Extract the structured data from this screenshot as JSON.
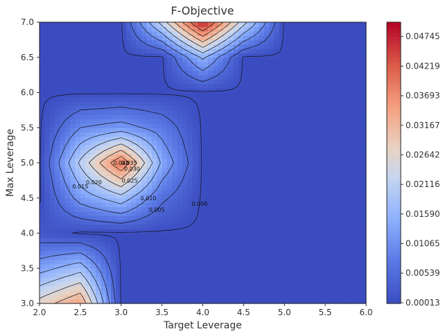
{
  "chart_data": {
    "type": "contour",
    "title": "F-Objective",
    "xlabel": "Target Leverage",
    "ylabel": "Max Leverage",
    "xlim": [
      2.0,
      6.0
    ],
    "ylim": [
      3.0,
      7.0
    ],
    "xticks": [
      "2.0",
      "2.5",
      "3.0",
      "3.5",
      "4.0",
      "4.5",
      "5.0",
      "5.5",
      "6.0"
    ],
    "yticks": [
      "3.0",
      "3.5",
      "4.0",
      "4.5",
      "5.0",
      "5.5",
      "6.0",
      "6.5",
      "7.0"
    ],
    "x": [
      2.0,
      2.5,
      3.0,
      3.5,
      4.0,
      4.5,
      5.0,
      5.5,
      6.0
    ],
    "y": [
      3.0,
      3.5,
      4.0,
      4.5,
      5.0,
      5.5,
      6.0,
      6.5,
      7.0
    ],
    "z": [
      [
        0.027,
        0.035,
        0.0,
        0.0,
        0.0,
        0.0,
        0.0,
        0.0,
        0.0
      ],
      [
        0.013,
        0.018,
        0.0,
        0.0,
        0.0,
        0.0,
        0.0,
        0.0,
        0.0
      ],
      [
        0.002,
        0.0,
        0.0,
        0.0,
        0.0,
        0.0,
        0.0,
        0.0,
        0.0
      ],
      [
        0.0,
        0.012,
        0.018,
        0.006,
        0.0,
        0.0,
        0.0,
        0.0,
        0.0
      ],
      [
        0.0,
        0.021,
        0.04,
        0.014,
        0.0,
        0.0,
        0.0,
        0.0,
        0.0
      ],
      [
        0.0,
        0.01,
        0.012,
        0.008,
        0.0,
        0.0,
        0.0,
        0.0,
        0.0
      ],
      [
        0.0,
        0.0,
        0.0,
        0.0,
        0.0,
        0.0,
        0.0,
        0.0,
        0.0
      ],
      [
        0.0,
        0.0,
        0.0,
        0.0,
        0.016,
        0.0,
        0.0,
        0.0,
        0.0
      ],
      [
        0.0,
        0.0,
        0.0,
        0.022,
        0.048,
        0.022,
        0.0,
        0.0,
        0.0
      ]
    ],
    "contour_levels": [
      0.0,
      0.005,
      0.01,
      0.015,
      0.02,
      0.025,
      0.03,
      0.035,
      0.04
    ],
    "contour_labels": [
      "0.000",
      "0.005",
      "0.010",
      "0.015",
      "0.020",
      "0.025",
      "0.030",
      "0.035",
      "0.040"
    ],
    "colorbar": {
      "ticks": [
        "0.00013",
        "0.00539",
        "0.01065",
        "0.01590",
        "0.02116",
        "0.02642",
        "0.03167",
        "0.03693",
        "0.04219",
        "0.04745"
      ],
      "range": [
        0.0,
        0.05
      ]
    },
    "colormap": "coolwarm",
    "colors": {
      "low": "#3b4cc0",
      "mid": "#dddddd",
      "high": "#b40426"
    }
  }
}
